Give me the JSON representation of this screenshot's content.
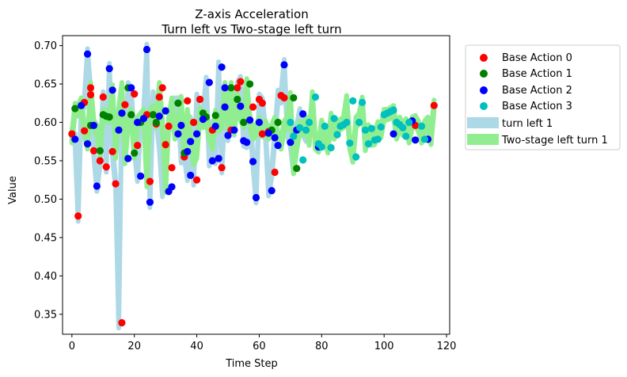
{
  "chart_data": {
    "type": "scatter",
    "title": "Z-axis Acceleration",
    "subtitle": "Turn left vs Two-stage left turn",
    "xlabel": "Time Step",
    "ylabel": "Value",
    "xlim": [
      -3,
      121
    ],
    "ylim": [
      0.324,
      0.713
    ],
    "xticks": [
      0,
      20,
      40,
      60,
      80,
      100,
      120
    ],
    "yticks": [
      0.35,
      0.4,
      0.45,
      0.5,
      0.55,
      0.6,
      0.65,
      0.7
    ],
    "ytick_labels": [
      "0.35",
      "0.40",
      "0.45",
      "0.50",
      "0.55",
      "0.60",
      "0.65",
      "0.70"
    ],
    "legend_position": "outside upper right",
    "bands": [
      {
        "name": "turn left 1",
        "color": "#add8e6",
        "x": [
          0,
          1,
          2,
          3,
          4,
          5,
          6,
          7,
          8,
          9,
          10,
          11,
          12,
          13,
          14,
          15,
          16,
          17,
          18,
          19,
          20,
          21,
          22,
          23,
          24,
          25,
          26,
          27,
          28,
          29,
          30,
          31,
          32,
          33,
          34,
          35,
          36,
          37,
          38,
          39,
          40,
          41,
          42,
          43,
          44,
          45,
          46,
          47,
          48,
          49,
          50,
          51,
          52,
          53,
          54,
          55,
          56,
          57,
          58,
          59,
          60,
          61,
          62,
          63,
          64,
          65,
          66,
          67,
          68,
          69,
          70,
          71,
          72,
          73,
          74,
          75,
          76
        ],
        "values": [
          0.585,
          0.578,
          0.478,
          0.622,
          0.626,
          0.689,
          0.636,
          0.563,
          0.517,
          0.55,
          0.633,
          0.542,
          0.67,
          0.562,
          0.52,
          0.339,
          0.623,
          0.555,
          0.645,
          0.637,
          0.57,
          0.53,
          0.6,
          0.61,
          0.695,
          0.496,
          0.633,
          0.608,
          0.571,
          0.51,
          0.541,
          0.6,
          0.598,
          0.625,
          0.625,
          0.554,
          0.562,
          0.531,
          0.6,
          0.525,
          0.63,
          0.603,
          0.608,
          0.652,
          0.55,
          0.595,
          0.553,
          0.672,
          0.541,
          0.618,
          0.583,
          0.62,
          0.59,
          0.645,
          0.653,
          0.576,
          0.574,
          0.603,
          0.549,
          0.502,
          0.63,
          0.625,
          0.586,
          0.511,
          0.535,
          0.58,
          0.635,
          0.632,
          0.675,
          0.59,
          0.574,
          0.54,
          0.59,
          0.611,
          0.59,
          0.582,
          0.6
        ]
      },
      {
        "name": "Two-stage left turn 1",
        "color": "#90ee90",
        "x": [
          0,
          1,
          2,
          3,
          4,
          5,
          6,
          7,
          8,
          9,
          10,
          11,
          12,
          13,
          14,
          15,
          16,
          17,
          18,
          19,
          20,
          21,
          22,
          23,
          24,
          25,
          26,
          27,
          28,
          29,
          30,
          31,
          32,
          33,
          34,
          35,
          36,
          37,
          38,
          39,
          40,
          41,
          42,
          43,
          44,
          45,
          46,
          47,
          48,
          49,
          50,
          51,
          52,
          53,
          54,
          55,
          56,
          57,
          58,
          59,
          60,
          61,
          62,
          63,
          64,
          65,
          66,
          67,
          68,
          69,
          70,
          71,
          72,
          73,
          74,
          75,
          76,
          77,
          78,
          79,
          80,
          81,
          82,
          83,
          84,
          85,
          86,
          87,
          88,
          89,
          90,
          91,
          92,
          93,
          94,
          95,
          96,
          97,
          98,
          99,
          100,
          101,
          102,
          103,
          104,
          105,
          106,
          107,
          108,
          109,
          110,
          111,
          112,
          113,
          114,
          115,
          116
        ],
        "values": [
          0.58,
          0.618,
          0.615,
          0.625,
          0.59,
          0.572,
          0.645,
          0.596,
          0.59,
          0.563,
          0.61,
          0.608,
          0.607,
          0.642,
          0.56,
          0.612,
          0.645,
          0.553,
          0.6,
          0.61,
          0.56,
          0.6,
          0.605,
          0.61,
          0.523,
          0.61,
          0.615,
          0.6,
          0.645,
          0.595,
          0.516,
          0.6,
          0.625,
          0.585,
          0.596,
          0.627,
          0.56,
          0.61,
          0.58,
          0.552,
          0.56,
          0.612,
          0.6,
          0.607,
          0.585,
          0.572,
          0.609,
          0.595,
          0.6,
          0.645,
          0.598,
          0.645,
          0.592,
          0.63,
          0.61,
          0.6,
          0.65,
          0.6,
          0.585,
          0.59,
          0.6,
          0.588,
          0.595,
          0.585,
          0.59,
          0.6,
          0.58,
          0.572,
          0.595,
          0.6,
          0.632,
          0.54,
          0.57,
          0.595,
          0.59,
          0.6,
          0.577,
          0.633,
          0.572,
          0.568,
          0.596,
          0.58,
          0.567,
          0.605,
          0.585,
          0.595,
          0.597,
          0.6,
          0.628,
          0.572,
          0.555,
          0.6,
          0.605,
          0.626,
          0.57,
          0.59,
          0.577,
          0.578,
          0.594,
          0.587,
          0.61,
          0.61,
          0.612,
          0.615,
          0.585,
          0.6,
          0.59,
          0.598,
          0.58,
          0.6,
          0.602,
          0.595,
          0.58,
          0.595,
          0.6,
          0.578,
          0.622
        ]
      }
    ],
    "series": [
      {
        "name": "Base Action 0",
        "color": "#ff0000",
        "points": [
          [
            0,
            0.585
          ],
          [
            2,
            0.478
          ],
          [
            4,
            0.626
          ],
          [
            4,
            0.589
          ],
          [
            6,
            0.645
          ],
          [
            6,
            0.636
          ],
          [
            7,
            0.563
          ],
          [
            9,
            0.55
          ],
          [
            10,
            0.633
          ],
          [
            11,
            0.542
          ],
          [
            13,
            0.562
          ],
          [
            14,
            0.52
          ],
          [
            16,
            0.339
          ],
          [
            17,
            0.623
          ],
          [
            20,
            0.637
          ],
          [
            21,
            0.57
          ],
          [
            24,
            0.61
          ],
          [
            25,
            0.523
          ],
          [
            26,
            0.61
          ],
          [
            27,
            0.598
          ],
          [
            28,
            0.633
          ],
          [
            29,
            0.645
          ],
          [
            30,
            0.571
          ],
          [
            31,
            0.595
          ],
          [
            32,
            0.541
          ],
          [
            36,
            0.555
          ],
          [
            37,
            0.628
          ],
          [
            39,
            0.6
          ],
          [
            40,
            0.525
          ],
          [
            41,
            0.63
          ],
          [
            43,
            0.607
          ],
          [
            45,
            0.59
          ],
          [
            48,
            0.541
          ],
          [
            51,
            0.59
          ],
          [
            53,
            0.645
          ],
          [
            54,
            0.653
          ],
          [
            58,
            0.62
          ],
          [
            60,
            0.63
          ],
          [
            61,
            0.585
          ],
          [
            61,
            0.625
          ],
          [
            63,
            0.588
          ],
          [
            65,
            0.535
          ],
          [
            67,
            0.635
          ],
          [
            68,
            0.632
          ],
          [
            110,
            0.596
          ],
          [
            114,
            0.578
          ],
          [
            116,
            0.622
          ]
        ]
      },
      {
        "name": "Base Action 1",
        "color": "#008000",
        "points": [
          [
            1,
            0.618
          ],
          [
            6,
            0.596
          ],
          [
            9,
            0.563
          ],
          [
            10,
            0.61
          ],
          [
            11,
            0.608
          ],
          [
            12,
            0.607
          ],
          [
            16,
            0.612
          ],
          [
            18,
            0.645
          ],
          [
            19,
            0.61
          ],
          [
            20,
            0.56
          ],
          [
            22,
            0.6
          ],
          [
            26,
            0.61
          ],
          [
            27,
            0.6
          ],
          [
            34,
            0.625
          ],
          [
            36,
            0.56
          ],
          [
            42,
            0.612
          ],
          [
            43,
            0.607
          ],
          [
            46,
            0.609
          ],
          [
            51,
            0.645
          ],
          [
            53,
            0.63
          ],
          [
            55,
            0.6
          ],
          [
            57,
            0.65
          ],
          [
            64,
            0.59
          ],
          [
            66,
            0.6
          ],
          [
            71,
            0.632
          ],
          [
            72,
            0.54
          ]
        ]
      },
      {
        "name": "Base Action 2",
        "color": "#0000ff",
        "points": [
          [
            1,
            0.578
          ],
          [
            3,
            0.622
          ],
          [
            5,
            0.689
          ],
          [
            5,
            0.572
          ],
          [
            7,
            0.596
          ],
          [
            8,
            0.517
          ],
          [
            12,
            0.67
          ],
          [
            13,
            0.642
          ],
          [
            15,
            0.59
          ],
          [
            16,
            0.612
          ],
          [
            18,
            0.553
          ],
          [
            19,
            0.645
          ],
          [
            21,
            0.6
          ],
          [
            22,
            0.53
          ],
          [
            24,
            0.695
          ],
          [
            25,
            0.496
          ],
          [
            23,
            0.605
          ],
          [
            28,
            0.608
          ],
          [
            30,
            0.615
          ],
          [
            31,
            0.51
          ],
          [
            32,
            0.516
          ],
          [
            34,
            0.585
          ],
          [
            35,
            0.596
          ],
          [
            37,
            0.562
          ],
          [
            38,
            0.531
          ],
          [
            38,
            0.575
          ],
          [
            40,
            0.585
          ],
          [
            42,
            0.604
          ],
          [
            44,
            0.652
          ],
          [
            45,
            0.55
          ],
          [
            46,
            0.595
          ],
          [
            47,
            0.553
          ],
          [
            48,
            0.672
          ],
          [
            49,
            0.645
          ],
          [
            49,
            0.62
          ],
          [
            50,
            0.583
          ],
          [
            52,
            0.59
          ],
          [
            54,
            0.621
          ],
          [
            55,
            0.576
          ],
          [
            56,
            0.574
          ],
          [
            57,
            0.603
          ],
          [
            58,
            0.549
          ],
          [
            59,
            0.502
          ],
          [
            60,
            0.6
          ],
          [
            63,
            0.586
          ],
          [
            64,
            0.511
          ],
          [
            65,
            0.58
          ],
          [
            66,
            0.57
          ],
          [
            68,
            0.675
          ],
          [
            70,
            0.574
          ],
          [
            72,
            0.59
          ],
          [
            74,
            0.611
          ],
          [
            79,
            0.568
          ],
          [
            103,
            0.585
          ],
          [
            109,
            0.602
          ],
          [
            110,
            0.577
          ],
          [
            114,
            0.578
          ]
        ]
      },
      {
        "name": "Base Action 3",
        "color": "#00bfbf",
        "points": [
          [
            70,
            0.6
          ],
          [
            71,
            0.582
          ],
          [
            73,
            0.593
          ],
          [
            74,
            0.551
          ],
          [
            75,
            0.59
          ],
          [
            76,
            0.6
          ],
          [
            78,
            0.633
          ],
          [
            79,
            0.572
          ],
          [
            80,
            0.568
          ],
          [
            81,
            0.595
          ],
          [
            83,
            0.567
          ],
          [
            84,
            0.605
          ],
          [
            85,
            0.584
          ],
          [
            86,
            0.595
          ],
          [
            87,
            0.597
          ],
          [
            88,
            0.6
          ],
          [
            89,
            0.573
          ],
          [
            90,
            0.628
          ],
          [
            91,
            0.555
          ],
          [
            92,
            0.6
          ],
          [
            93,
            0.626
          ],
          [
            94,
            0.59
          ],
          [
            95,
            0.572
          ],
          [
            96,
            0.592
          ],
          [
            97,
            0.577
          ],
          [
            98,
            0.578
          ],
          [
            99,
            0.594
          ],
          [
            100,
            0.61
          ],
          [
            101,
            0.612
          ],
          [
            102,
            0.614
          ],
          [
            103,
            0.616
          ],
          [
            104,
            0.6
          ],
          [
            105,
            0.597
          ],
          [
            106,
            0.593
          ],
          [
            107,
            0.582
          ],
          [
            108,
            0.6
          ],
          [
            112,
            0.595
          ],
          [
            113,
            0.578
          ]
        ]
      }
    ]
  }
}
